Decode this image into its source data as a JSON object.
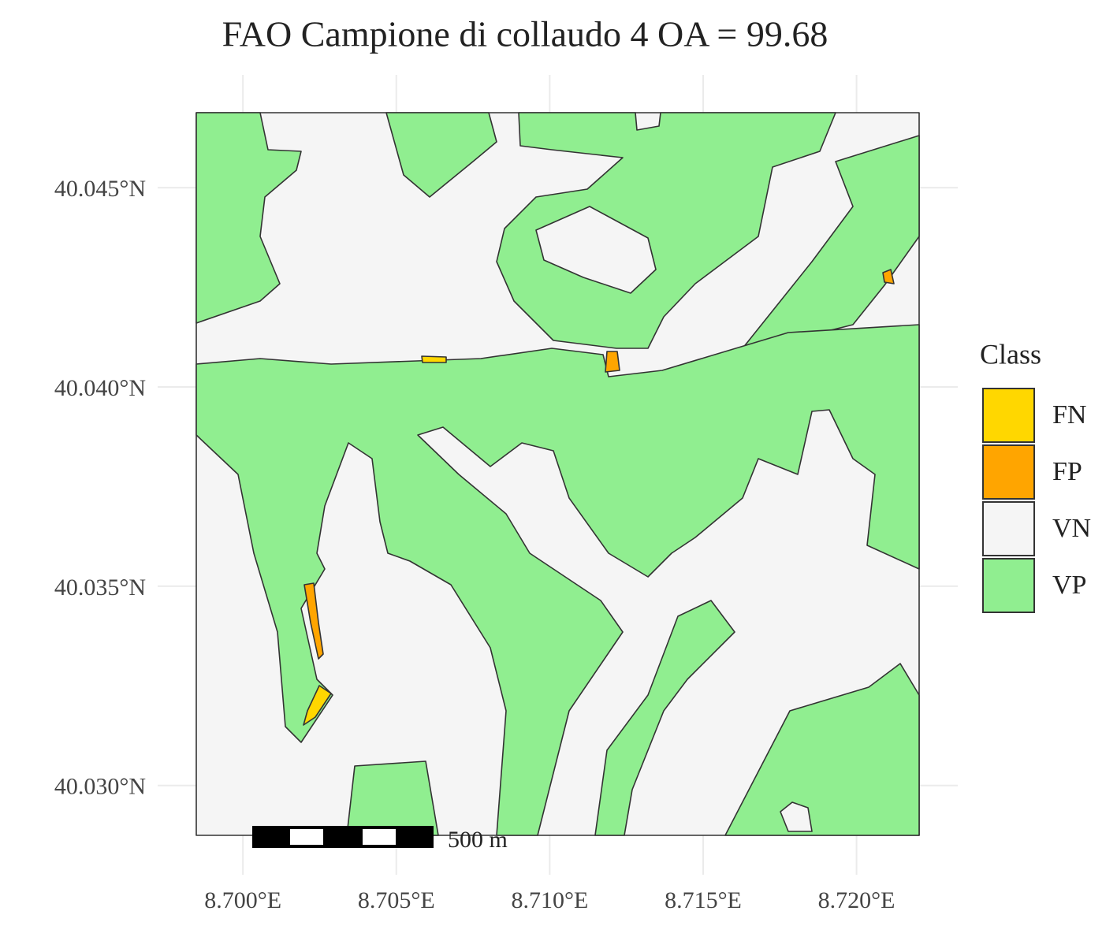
{
  "title": "FAO Campione di collaudo 4 OA = 99.68",
  "map": {
    "xlim": [
      8.69848,
      8.72204
    ],
    "ylim": [
      40.02875,
      40.04688
    ],
    "xticks": [
      {
        "value": 8.7,
        "label": "8.700°E"
      },
      {
        "value": 8.705,
        "label": "8.705°E"
      },
      {
        "value": 8.71,
        "label": "8.710°E"
      },
      {
        "value": 8.715,
        "label": "8.715°E"
      },
      {
        "value": 8.72,
        "label": "8.720°E"
      }
    ],
    "yticks": [
      {
        "value": 40.03,
        "label": "40.030°N"
      },
      {
        "value": 40.035,
        "label": "40.035°N"
      },
      {
        "value": 40.04,
        "label": "40.040°N"
      },
      {
        "value": 40.045,
        "label": "40.045°N"
      }
    ],
    "grid": true
  },
  "legend": {
    "title": "Class",
    "items": [
      {
        "label": "FN",
        "color": "#ffd700"
      },
      {
        "label": "FP",
        "color": "#ffa500"
      },
      {
        "label": "VN",
        "color": "#f5f5f5"
      },
      {
        "label": "VP",
        "color": "#90ee90"
      }
    ]
  },
  "scale_bar": {
    "label": "500 m"
  }
}
